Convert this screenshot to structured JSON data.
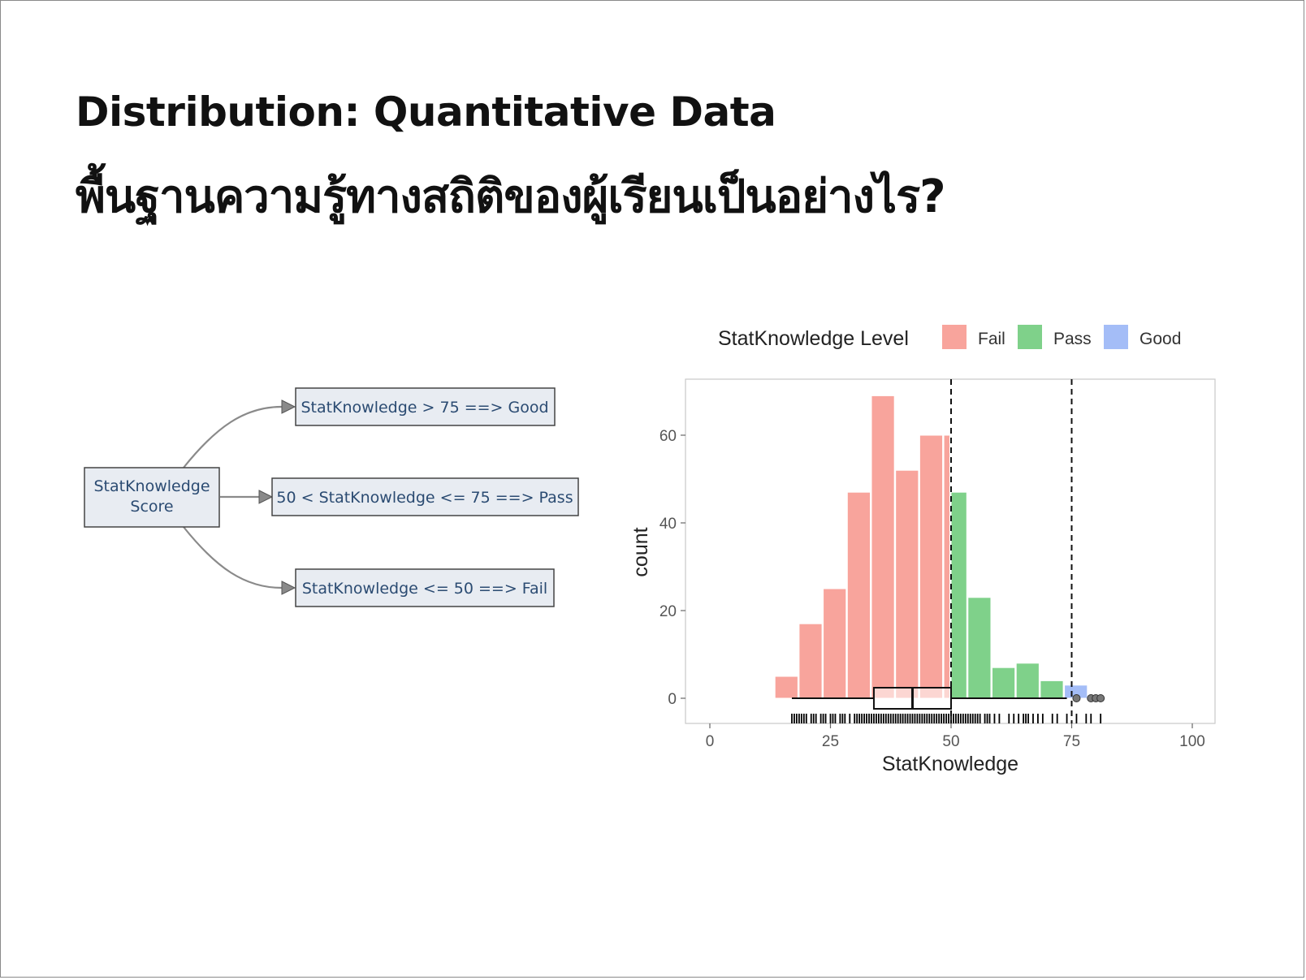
{
  "slide": {
    "title": "Distribution: Quantitative Data",
    "subtitle": "พื้นฐานความรู้ทางสถิติของผู้เรียนเป็นอย่างไร?"
  },
  "flowchart": {
    "source": {
      "line1": "StatKnowledge",
      "line2": "Score"
    },
    "good": "StatKnowledge > 75 ==> Good",
    "pass": "50 < StatKnowledge <= 75 ==> Pass",
    "fail": "StatKnowledge <= 50 ==> Fail"
  },
  "chart_data": {
    "type": "bar",
    "xlabel": "StatKnowledge",
    "ylabel": "count",
    "xlim": [
      -5,
      105
    ],
    "ylim": [
      -6,
      72
    ],
    "xticks": [
      0,
      25,
      50,
      75,
      100
    ],
    "yticks": [
      0,
      20,
      40,
      60
    ],
    "grid": false,
    "legend": {
      "title": "StatKnowledge Level",
      "position": "top",
      "items": [
        {
          "label": "Fail",
          "color": "#f8a49c"
        },
        {
          "label": "Pass",
          "color": "#7fd18a"
        },
        {
          "label": "Good",
          "color": "#a4bdf7"
        }
      ]
    },
    "bins": [
      {
        "x0": 13.5,
        "x1": 18.5,
        "count": 5,
        "level": "Fail"
      },
      {
        "x0": 18.5,
        "x1": 23.5,
        "count": 17,
        "level": "Fail"
      },
      {
        "x0": 23.5,
        "x1": 28.5,
        "count": 25,
        "level": "Fail"
      },
      {
        "x0": 28.5,
        "x1": 33.5,
        "count": 47,
        "level": "Fail"
      },
      {
        "x0": 33.5,
        "x1": 38.5,
        "count": 69,
        "level": "Fail"
      },
      {
        "x0": 38.5,
        "x1": 43.5,
        "count": 52,
        "level": "Fail"
      },
      {
        "x0": 43.5,
        "x1": 48.5,
        "count": 60,
        "level": "Fail"
      },
      {
        "x0": 48.5,
        "x1": 50,
        "count": 60,
        "level": "Fail"
      },
      {
        "x0": 50,
        "x1": 53.5,
        "count": 47,
        "level": "Pass"
      },
      {
        "x0": 53.5,
        "x1": 58.5,
        "count": 23,
        "level": "Pass"
      },
      {
        "x0": 58.5,
        "x1": 63.5,
        "count": 7,
        "level": "Pass"
      },
      {
        "x0": 63.5,
        "x1": 68.5,
        "count": 8,
        "level": "Pass"
      },
      {
        "x0": 68.5,
        "x1": 73.5,
        "count": 4,
        "level": "Pass"
      },
      {
        "x0": 73.5,
        "x1": 78.5,
        "count": 3,
        "level": "Good"
      }
    ],
    "cutoffs": [
      50,
      75
    ],
    "boxplot": {
      "min": 17,
      "q1": 34,
      "median": 42,
      "q3": 50,
      "max": 74,
      "outliers": [
        76,
        79,
        80,
        81
      ]
    },
    "rug": [
      17,
      17.5,
      18,
      18.5,
      19,
      19.5,
      20,
      21,
      21.5,
      22,
      23,
      23.5,
      24,
      25,
      25.5,
      26,
      27,
      27.5,
      28,
      29,
      30,
      30.5,
      31,
      31.5,
      32,
      32.5,
      33,
      33.5,
      34,
      34.5,
      35,
      35.5,
      36,
      36.5,
      37,
      37.5,
      38,
      38.5,
      39,
      39.5,
      40,
      40.5,
      41,
      41.5,
      42,
      42.5,
      43,
      43.5,
      44,
      44.5,
      45,
      45.5,
      46,
      46.5,
      47,
      47.5,
      48,
      48.5,
      49,
      49.5,
      50,
      50.5,
      51,
      51.5,
      52,
      52.5,
      53,
      53.5,
      54,
      54.5,
      55,
      55.5,
      56,
      57,
      57.5,
      58,
      59,
      60,
      62,
      63,
      64,
      65,
      65.5,
      66,
      67,
      68,
      69,
      71,
      72,
      74,
      76,
      78,
      79,
      81
    ]
  }
}
